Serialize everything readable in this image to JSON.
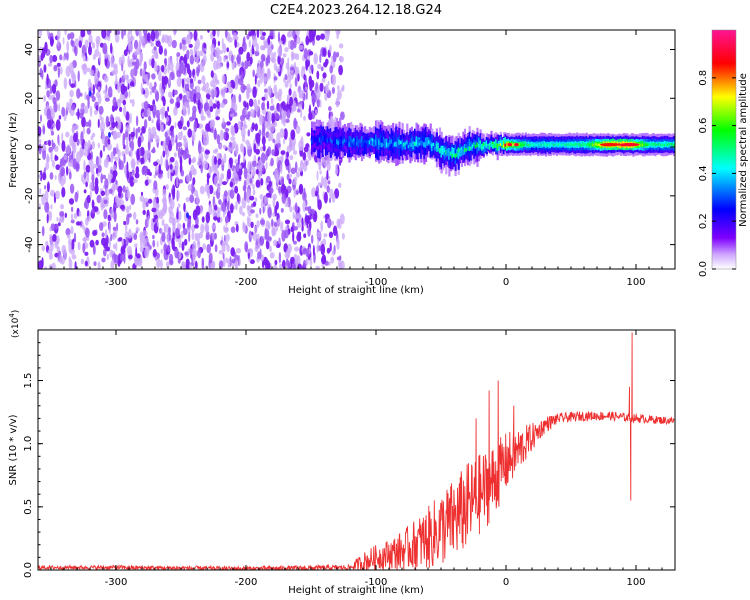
{
  "title": "C2E4.2023.264.12.18.G24",
  "colors": {
    "snr_line": "#ee3030",
    "spectrum_noise": "#9a55f5",
    "colormap": [
      "#ffffff",
      "#7f00ff",
      "#0000ff",
      "#00ffff",
      "#00ff00",
      "#ffff00",
      "#ff0000",
      "#ff1493"
    ]
  },
  "chart_data": [
    {
      "type": "heatmap",
      "xlabel": "Height of straight line (km)",
      "ylabel": "Frequency (Hz)",
      "xlim": [
        -360,
        130
      ],
      "ylim": [
        -50,
        48
      ],
      "x_ticks": [
        "-300",
        "-200",
        "-100",
        "0",
        "100"
      ],
      "x_tick_values": [
        -300,
        -200,
        -100,
        0,
        100
      ],
      "y_ticks": [
        "-40",
        "-20",
        "0",
        "20",
        "40"
      ],
      "y_tick_values": [
        -40,
        -20,
        0,
        20,
        40
      ],
      "colorbar": {
        "label": "Normalized spectral amplitude",
        "range": [
          0,
          1
        ],
        "ticks": [
          "0.0",
          "0.2",
          "0.4",
          "0.6",
          "0.8"
        ],
        "tick_values": [
          0,
          0.2,
          0.4,
          0.6,
          0.8
        ]
      },
      "signal_band": {
        "x_start": -150,
        "x_end": 130,
        "center_hz": [
          [
            -150,
            3
          ],
          [
            -120,
            2
          ],
          [
            -100,
            2
          ],
          [
            -80,
            1
          ],
          [
            -60,
            2
          ],
          [
            -50,
            -2
          ],
          [
            -40,
            -3
          ],
          [
            -30,
            0
          ],
          [
            -10,
            1
          ],
          [
            0,
            1
          ],
          [
            50,
            1
          ],
          [
            100,
            1
          ],
          [
            130,
            1
          ]
        ],
        "amplitude": [
          [
            -150,
            0.25
          ],
          [
            -100,
            0.35
          ],
          [
            -60,
            0.4
          ],
          [
            -30,
            0.45
          ],
          [
            -10,
            0.5
          ],
          [
            0,
            0.75
          ],
          [
            20,
            0.45
          ],
          [
            60,
            0.5
          ],
          [
            75,
            0.8
          ],
          [
            95,
            0.85
          ],
          [
            110,
            0.5
          ],
          [
            130,
            0.5
          ]
        ],
        "peaks": [
          {
            "x": 3,
            "amplitude": 0.9
          },
          {
            "x": 8,
            "amplitude": 0.9
          },
          {
            "x": 80,
            "amplitude": 0.85
          },
          {
            "x": 95,
            "amplitude": 0.9
          }
        ]
      },
      "noise_region": {
        "x_start": -360,
        "x_end": -125
      }
    },
    {
      "type": "line",
      "xlabel": "Height of straight line (km)",
      "ylabel": "SNR (10 * v/v)",
      "y_scale_label": "(x10",
      "y_scale_exponent": "4",
      "y_scale_close": ")",
      "xlim": [
        -360,
        130
      ],
      "ylim": [
        0,
        1.9
      ],
      "x_ticks": [
        "-300",
        "-200",
        "-100",
        "0",
        "100"
      ],
      "x_tick_values": [
        -300,
        -200,
        -100,
        0,
        100
      ],
      "y_ticks": [
        "0.0",
        "0.5",
        "1.0",
        "1.5"
      ],
      "y_tick_values": [
        0,
        0.5,
        1.0,
        1.5
      ],
      "series": [
        {
          "trend": [
            [
              -360,
              0.02
            ],
            [
              -300,
              0.02
            ],
            [
              -200,
              0.01
            ],
            [
              -120,
              0.02
            ],
            [
              -100,
              0.1
            ],
            [
              -80,
              0.15
            ],
            [
              -60,
              0.25
            ],
            [
              -40,
              0.4
            ],
            [
              -25,
              0.55
            ],
            [
              -10,
              0.7
            ],
            [
              0,
              0.85
            ],
            [
              10,
              0.95
            ],
            [
              20,
              1.05
            ],
            [
              30,
              1.15
            ],
            [
              40,
              1.2
            ],
            [
              60,
              1.22
            ],
            [
              80,
              1.22
            ],
            [
              100,
              1.2
            ],
            [
              130,
              1.18
            ]
          ],
          "noise_amplitude": [
            [
              -360,
              0.015
            ],
            [
              -120,
              0.02
            ],
            [
              -110,
              0.08
            ],
            [
              -90,
              0.12
            ],
            [
              -70,
              0.2
            ],
            [
              -50,
              0.3
            ],
            [
              -30,
              0.35
            ],
            [
              -10,
              0.3
            ],
            [
              10,
              0.18
            ],
            [
              25,
              0.08
            ],
            [
              40,
              0.04
            ],
            [
              130,
              0.03
            ]
          ],
          "spikes": [
            {
              "x": -13,
              "y": 1.42
            },
            {
              "x": -6,
              "y": 1.5
            },
            {
              "x": -23,
              "y": 1.2
            },
            {
              "x": 6,
              "y": 1.3
            },
            {
              "x": 95,
              "y": 1.45
            },
            {
              "x": 96,
              "y": 0.55
            },
            {
              "x": 97,
              "y": 1.88
            }
          ]
        }
      ]
    }
  ]
}
